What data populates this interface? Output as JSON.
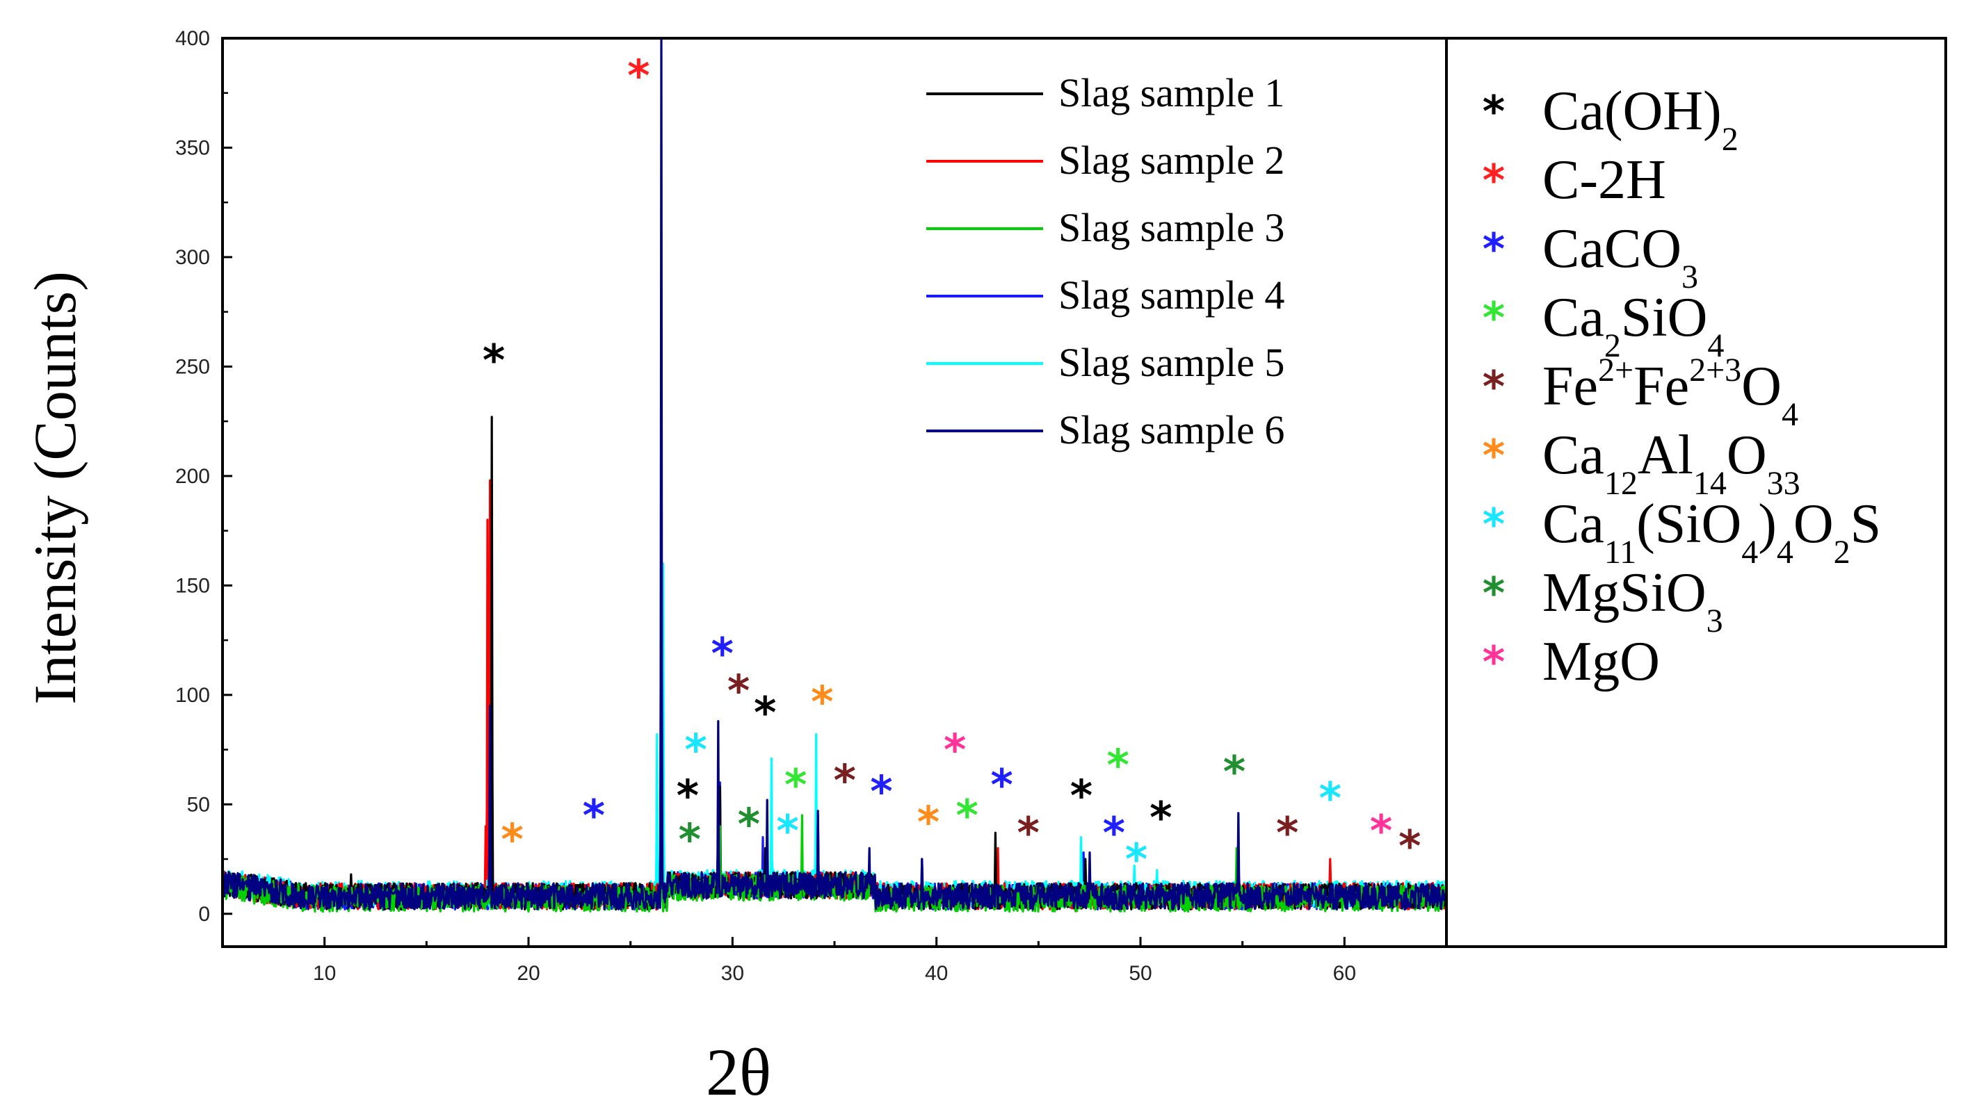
{
  "chart_data": {
    "type": "line",
    "title": "",
    "xlabel": "2θ",
    "ylabel": "Intensity (Counts)",
    "xlim": [
      5,
      65
    ],
    "ylim": [
      -15,
      400
    ],
    "x_ticks": [
      10,
      20,
      30,
      40,
      50,
      60
    ],
    "y_ticks": [
      0,
      50,
      100,
      150,
      200,
      250,
      300,
      350,
      400
    ],
    "legend_position": "top-center",
    "series": [
      {
        "name": "Slag sample 1",
        "color": "#000000",
        "baseline": 8,
        "peaks": [
          [
            11.3,
            18
          ],
          [
            18.2,
            227
          ],
          [
            26.5,
            160
          ],
          [
            29.4,
            58
          ],
          [
            31.6,
            30
          ],
          [
            34.2,
            45
          ],
          [
            42.9,
            37
          ],
          [
            47.3,
            25
          ]
        ]
      },
      {
        "name": "Slag sample 2",
        "color": "#ff0000",
        "baseline": 8,
        "peaks": [
          [
            17.9,
            40
          ],
          [
            18.0,
            180
          ],
          [
            18.1,
            198
          ],
          [
            26.5,
            170
          ],
          [
            29.4,
            50
          ],
          [
            43.0,
            30
          ],
          [
            59.3,
            25
          ]
        ]
      },
      {
        "name": "Slag sample 3",
        "color": "#00d000",
        "baseline": 7,
        "peaks": [
          [
            18.1,
            35
          ],
          [
            26.5,
            100
          ],
          [
            29.4,
            40
          ],
          [
            33.4,
            45
          ],
          [
            54.7,
            30
          ]
        ]
      },
      {
        "name": "Slag sample 4",
        "color": "#1a1aff",
        "baseline": 8,
        "peaks": [
          [
            18.1,
            50
          ],
          [
            26.5,
            180
          ],
          [
            29.4,
            60
          ],
          [
            31.5,
            35
          ],
          [
            39.3,
            25
          ],
          [
            47.2,
            28
          ]
        ]
      },
      {
        "name": "Slag sample 5",
        "color": "#00ffff",
        "baseline": 9,
        "peaks": [
          [
            18.0,
            30
          ],
          [
            26.3,
            82
          ],
          [
            26.6,
            160
          ],
          [
            29.3,
            50
          ],
          [
            31.9,
            71
          ],
          [
            34.1,
            82
          ],
          [
            47.1,
            35
          ],
          [
            49.7,
            22
          ],
          [
            50.8,
            20
          ]
        ]
      },
      {
        "name": "Slag sample 6",
        "color": "#000080",
        "baseline": 8,
        "peaks": [
          [
            18.1,
            95
          ],
          [
            26.5,
            400
          ],
          [
            29.3,
            88
          ],
          [
            31.7,
            52
          ],
          [
            34.2,
            47
          ],
          [
            36.7,
            30
          ],
          [
            39.3,
            25
          ],
          [
            47.5,
            28
          ],
          [
            54.8,
            46
          ]
        ]
      }
    ],
    "phases": [
      {
        "id": "caoh2",
        "color": "#000000",
        "parts": [
          [
            "Ca(OH)",
            "n"
          ],
          [
            "2",
            "sub"
          ]
        ]
      },
      {
        "id": "c2h",
        "color": "#ff2020",
        "parts": [
          [
            "C-2H",
            "n"
          ]
        ]
      },
      {
        "id": "caco3",
        "color": "#2020ff",
        "parts": [
          [
            "CaCO",
            "n"
          ],
          [
            "3",
            "sub"
          ]
        ]
      },
      {
        "id": "ca2sio4",
        "color": "#33e633",
        "parts": [
          [
            "Ca",
            "n"
          ],
          [
            "2",
            "sub"
          ],
          [
            "SiO",
            "n"
          ],
          [
            "4",
            "sub"
          ]
        ]
      },
      {
        "id": "fe3o4",
        "color": "#7a1f1f",
        "parts": [
          [
            " Fe",
            "n"
          ],
          [
            "2+",
            "sup"
          ],
          [
            "Fe",
            "n"
          ],
          [
            "2+3",
            "sup"
          ],
          [
            "O",
            "n"
          ],
          [
            "4",
            "sub"
          ]
        ]
      },
      {
        "id": "c12a7",
        "color": "#ff8c1a",
        "parts": [
          [
            "Ca",
            "n"
          ],
          [
            "12",
            "sub"
          ],
          [
            "Al",
            "n"
          ],
          [
            "14",
            "sub"
          ],
          [
            "O",
            "n"
          ],
          [
            "33",
            "sub"
          ]
        ]
      },
      {
        "id": "ternesite",
        "color": "#19e6ff",
        "parts": [
          [
            "Ca",
            "n"
          ],
          [
            "11",
            "sub"
          ],
          [
            "(SiO",
            "n"
          ],
          [
            "4",
            "sub"
          ],
          [
            ")",
            "n"
          ],
          [
            "4",
            "sub"
          ],
          [
            "O",
            "n"
          ],
          [
            "2",
            "sub"
          ],
          [
            "S",
            "n"
          ]
        ]
      },
      {
        "id": "mgsio3",
        "color": "#1f8f2f",
        "parts": [
          [
            " MgSiO",
            "n"
          ],
          [
            "3",
            "sub"
          ]
        ]
      },
      {
        "id": "mgo",
        "color": "#ff3399",
        "parts": [
          [
            "  MgO",
            "n"
          ]
        ]
      }
    ],
    "peak_markers": [
      {
        "phase": "caoh2",
        "x": 18.3,
        "y": 253
      },
      {
        "phase": "c2h",
        "x": 25.4,
        "y": 383
      },
      {
        "phase": "c12a7",
        "x": 19.2,
        "y": 34
      },
      {
        "phase": "caco3",
        "x": 23.2,
        "y": 45
      },
      {
        "phase": "caoh2",
        "x": 27.8,
        "y": 54
      },
      {
        "phase": "mgsio3",
        "x": 27.9,
        "y": 34
      },
      {
        "phase": "ternesite",
        "x": 28.2,
        "y": 75
      },
      {
        "phase": "caco3",
        "x": 29.5,
        "y": 119
      },
      {
        "phase": "fe3o4",
        "x": 30.3,
        "y": 102
      },
      {
        "phase": "caoh2",
        "x": 31.6,
        "y": 92
      },
      {
        "phase": "mgsio3",
        "x": 30.8,
        "y": 41
      },
      {
        "phase": "ternesite",
        "x": 32.7,
        "y": 38
      },
      {
        "phase": "ca2sio4",
        "x": 33.1,
        "y": 59
      },
      {
        "phase": "c12a7",
        "x": 34.4,
        "y": 97
      },
      {
        "phase": "fe3o4",
        "x": 35.5,
        "y": 61
      },
      {
        "phase": "caco3",
        "x": 37.3,
        "y": 56
      },
      {
        "phase": "c12a7",
        "x": 39.6,
        "y": 42
      },
      {
        "phase": "mgo",
        "x": 40.9,
        "y": 75
      },
      {
        "phase": "ca2sio4",
        "x": 41.5,
        "y": 45
      },
      {
        "phase": "caco3",
        "x": 43.2,
        "y": 59
      },
      {
        "phase": "fe3o4",
        "x": 44.5,
        "y": 37
      },
      {
        "phase": "caoh2",
        "x": 47.1,
        "y": 54
      },
      {
        "phase": "ca2sio4",
        "x": 48.9,
        "y": 68
      },
      {
        "phase": "caco3",
        "x": 48.7,
        "y": 37
      },
      {
        "phase": "ternesite",
        "x": 49.8,
        "y": 25
      },
      {
        "phase": "caoh2",
        "x": 51.0,
        "y": 44
      },
      {
        "phase": "mgsio3",
        "x": 54.6,
        "y": 65
      },
      {
        "phase": "fe3o4",
        "x": 57.2,
        "y": 37
      },
      {
        "phase": "ternesite",
        "x": 59.3,
        "y": 53
      },
      {
        "phase": "mgo",
        "x": 61.8,
        "y": 38
      },
      {
        "phase": "fe3o4",
        "x": 63.2,
        "y": 31
      }
    ]
  }
}
